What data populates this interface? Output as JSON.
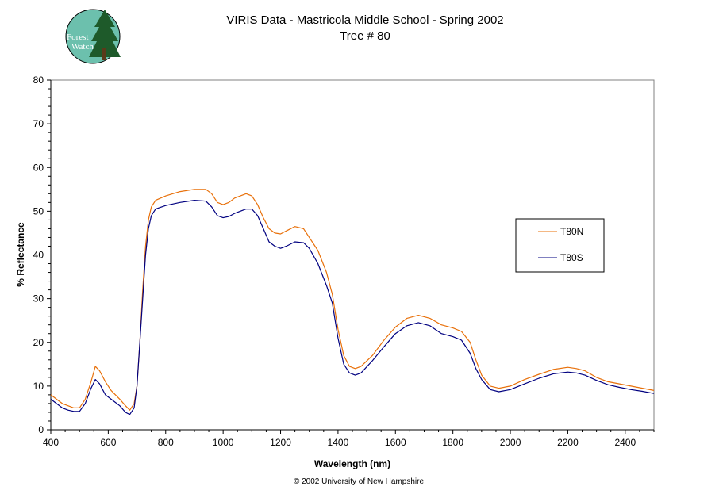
{
  "logo": {
    "line1": "Forest",
    "line2": "Watch"
  },
  "copyright": "© 2002 University of New Hampshire",
  "colors": {
    "T80N": "#e8700a",
    "T80S": "#000080",
    "logo_bg": "#6cc0ad",
    "logo_tree": "#1e5a2a"
  },
  "chart_data": {
    "type": "line",
    "title": "VIRIS Data - Mastricola Middle School - Spring 2002",
    "subtitle": "Tree # 80",
    "xlabel": "Wavelength (nm)",
    "ylabel": "% Reflectance",
    "xlim": [
      400,
      2500
    ],
    "ylim": [
      0,
      80
    ],
    "xticks": [
      400,
      600,
      800,
      1000,
      1200,
      1400,
      1600,
      1800,
      2000,
      2200,
      2400
    ],
    "yticks": [
      0,
      10,
      20,
      30,
      40,
      50,
      60,
      70,
      80
    ],
    "grid": false,
    "legend": "right",
    "series": [
      {
        "name": "T80N",
        "points": [
          [
            400,
            8
          ],
          [
            420,
            7
          ],
          [
            440,
            6
          ],
          [
            460,
            5.5
          ],
          [
            480,
            5
          ],
          [
            500,
            5
          ],
          [
            520,
            7
          ],
          [
            540,
            11
          ],
          [
            555,
            14.5
          ],
          [
            570,
            13.5
          ],
          [
            590,
            11
          ],
          [
            610,
            9
          ],
          [
            640,
            7
          ],
          [
            660,
            5.5
          ],
          [
            675,
            4.5
          ],
          [
            690,
            6
          ],
          [
            700,
            10
          ],
          [
            710,
            20
          ],
          [
            720,
            32
          ],
          [
            730,
            42
          ],
          [
            740,
            48
          ],
          [
            750,
            51
          ],
          [
            765,
            52.5
          ],
          [
            800,
            53.5
          ],
          [
            850,
            54.5
          ],
          [
            900,
            55
          ],
          [
            940,
            55
          ],
          [
            960,
            54
          ],
          [
            980,
            52
          ],
          [
            1000,
            51.5
          ],
          [
            1020,
            52
          ],
          [
            1040,
            53
          ],
          [
            1080,
            54
          ],
          [
            1100,
            53.5
          ],
          [
            1120,
            51.5
          ],
          [
            1140,
            48.5
          ],
          [
            1160,
            46
          ],
          [
            1180,
            45
          ],
          [
            1200,
            44.8
          ],
          [
            1220,
            45.5
          ],
          [
            1250,
            46.5
          ],
          [
            1280,
            46
          ],
          [
            1300,
            44
          ],
          [
            1330,
            41
          ],
          [
            1360,
            36
          ],
          [
            1380,
            31
          ],
          [
            1400,
            23
          ],
          [
            1420,
            17
          ],
          [
            1440,
            14.5
          ],
          [
            1460,
            14
          ],
          [
            1480,
            14.5
          ],
          [
            1520,
            17
          ],
          [
            1560,
            20.5
          ],
          [
            1600,
            23.5
          ],
          [
            1640,
            25.5
          ],
          [
            1680,
            26.2
          ],
          [
            1720,
            25.5
          ],
          [
            1760,
            24
          ],
          [
            1800,
            23.3
          ],
          [
            1830,
            22.5
          ],
          [
            1860,
            20
          ],
          [
            1880,
            16
          ],
          [
            1900,
            12.5
          ],
          [
            1930,
            10
          ],
          [
            1960,
            9.5
          ],
          [
            2000,
            10
          ],
          [
            2050,
            11.5
          ],
          [
            2100,
            12.7
          ],
          [
            2150,
            13.8
          ],
          [
            2200,
            14.3
          ],
          [
            2230,
            14
          ],
          [
            2260,
            13.5
          ],
          [
            2300,
            12
          ],
          [
            2340,
            11
          ],
          [
            2380,
            10.5
          ],
          [
            2420,
            10
          ],
          [
            2460,
            9.5
          ],
          [
            2500,
            9
          ]
        ]
      },
      {
        "name": "T80S",
        "points": [
          [
            400,
            7
          ],
          [
            420,
            6
          ],
          [
            440,
            5
          ],
          [
            460,
            4.5
          ],
          [
            480,
            4.2
          ],
          [
            500,
            4.2
          ],
          [
            520,
            6
          ],
          [
            540,
            9.5
          ],
          [
            555,
            11.5
          ],
          [
            570,
            10.5
          ],
          [
            590,
            8
          ],
          [
            610,
            7
          ],
          [
            640,
            5.5
          ],
          [
            660,
            4
          ],
          [
            675,
            3.5
          ],
          [
            690,
            5
          ],
          [
            700,
            10
          ],
          [
            710,
            20
          ],
          [
            720,
            30
          ],
          [
            730,
            40
          ],
          [
            740,
            46
          ],
          [
            750,
            49
          ],
          [
            765,
            50.5
          ],
          [
            800,
            51.3
          ],
          [
            850,
            52
          ],
          [
            900,
            52.5
          ],
          [
            940,
            52.3
          ],
          [
            960,
            51
          ],
          [
            980,
            49
          ],
          [
            1000,
            48.5
          ],
          [
            1020,
            48.8
          ],
          [
            1040,
            49.5
          ],
          [
            1080,
            50.5
          ],
          [
            1100,
            50.5
          ],
          [
            1120,
            49
          ],
          [
            1140,
            46
          ],
          [
            1160,
            43
          ],
          [
            1180,
            42
          ],
          [
            1200,
            41.5
          ],
          [
            1220,
            42
          ],
          [
            1250,
            43
          ],
          [
            1280,
            42.8
          ],
          [
            1300,
            41.5
          ],
          [
            1330,
            38
          ],
          [
            1360,
            33
          ],
          [
            1380,
            29
          ],
          [
            1400,
            21
          ],
          [
            1420,
            15
          ],
          [
            1440,
            13
          ],
          [
            1460,
            12.5
          ],
          [
            1480,
            13
          ],
          [
            1520,
            15.8
          ],
          [
            1560,
            19
          ],
          [
            1600,
            22
          ],
          [
            1640,
            23.8
          ],
          [
            1680,
            24.5
          ],
          [
            1720,
            23.8
          ],
          [
            1760,
            22
          ],
          [
            1800,
            21.3
          ],
          [
            1830,
            20.5
          ],
          [
            1860,
            17.5
          ],
          [
            1880,
            14
          ],
          [
            1900,
            11.5
          ],
          [
            1930,
            9.2
          ],
          [
            1960,
            8.7
          ],
          [
            2000,
            9.2
          ],
          [
            2050,
            10.5
          ],
          [
            2100,
            11.8
          ],
          [
            2150,
            12.8
          ],
          [
            2200,
            13.2
          ],
          [
            2230,
            13
          ],
          [
            2260,
            12.5
          ],
          [
            2300,
            11.3
          ],
          [
            2340,
            10.3
          ],
          [
            2380,
            9.7
          ],
          [
            2420,
            9.2
          ],
          [
            2460,
            8.8
          ],
          [
            2500,
            8.3
          ]
        ]
      }
    ]
  }
}
